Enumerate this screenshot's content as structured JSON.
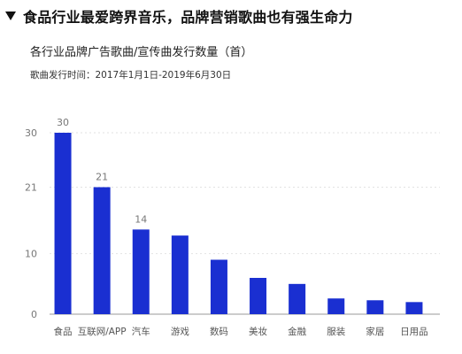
{
  "header": {
    "title": "食品行业最爱跨界音乐，品牌营销歌曲也有强生命力",
    "subtitle": "各行业品牌广告歌曲/宣传曲发行数量（首）",
    "note": "歌曲发行时间：2017年1月1日-2019年6月30日"
  },
  "colors": {
    "bar": "#1a2fd1",
    "grid": "#e2e2e2",
    "axis": "#999999"
  },
  "chart_data": {
    "type": "bar",
    "title": "各行业品牌广告歌曲/宣传曲发行数量（首）",
    "xlabel": "",
    "ylabel": "",
    "categories": [
      "食品",
      "互联网/APP",
      "汽车",
      "游戏",
      "数码",
      "美妆",
      "金融",
      "服装",
      "家居",
      "日用品"
    ],
    "values": [
      30,
      21,
      14,
      13,
      9,
      6,
      5,
      2.6,
      2.3,
      2
    ],
    "data_labels": [
      "30",
      "21",
      "14",
      "",
      "",
      "",
      "",
      "",
      "",
      ""
    ],
    "y_ticks": [
      0,
      10,
      21,
      30
    ],
    "ylim": [
      0,
      30
    ],
    "grid": true
  }
}
